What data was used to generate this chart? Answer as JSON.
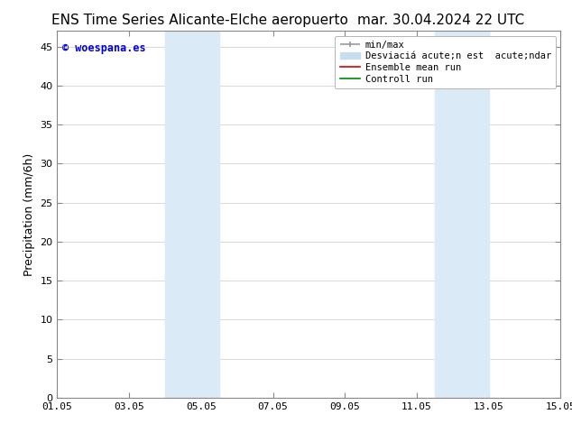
{
  "title_left": "ENS Time Series Alicante-Elche aeropuerto",
  "title_right": "mar. 30.04.2024 22 UTC",
  "ylabel": "Precipitation (mm/6h)",
  "xlim": [
    1.05,
    15.05
  ],
  "ylim": [
    0,
    47
  ],
  "yticks": [
    0,
    5,
    10,
    15,
    20,
    25,
    30,
    35,
    40,
    45
  ],
  "xtick_labels": [
    "01.05",
    "03.05",
    "05.05",
    "07.05",
    "09.05",
    "11.05",
    "13.05",
    "15.05"
  ],
  "xtick_positions": [
    1.05,
    3.05,
    5.05,
    7.05,
    9.05,
    11.05,
    13.05,
    15.05
  ],
  "shaded_regions": [
    {
      "xmin": 4.05,
      "xmax": 5.55,
      "color": "#daeaf6"
    },
    {
      "xmin": 11.55,
      "xmax": 13.05,
      "color": "#daeaf6"
    }
  ],
  "watermark_text": "© woespana.es",
  "watermark_color": "#0000dd",
  "background_color": "#ffffff",
  "legend_min_max_color": "#999999",
  "legend_std_color": "#c8def0",
  "legend_ensemble_color": "#dd0000",
  "legend_control_color": "#008800",
  "title_fontsize": 11,
  "tick_fontsize": 8,
  "ylabel_fontsize": 9,
  "legend_fontsize": 7.5
}
